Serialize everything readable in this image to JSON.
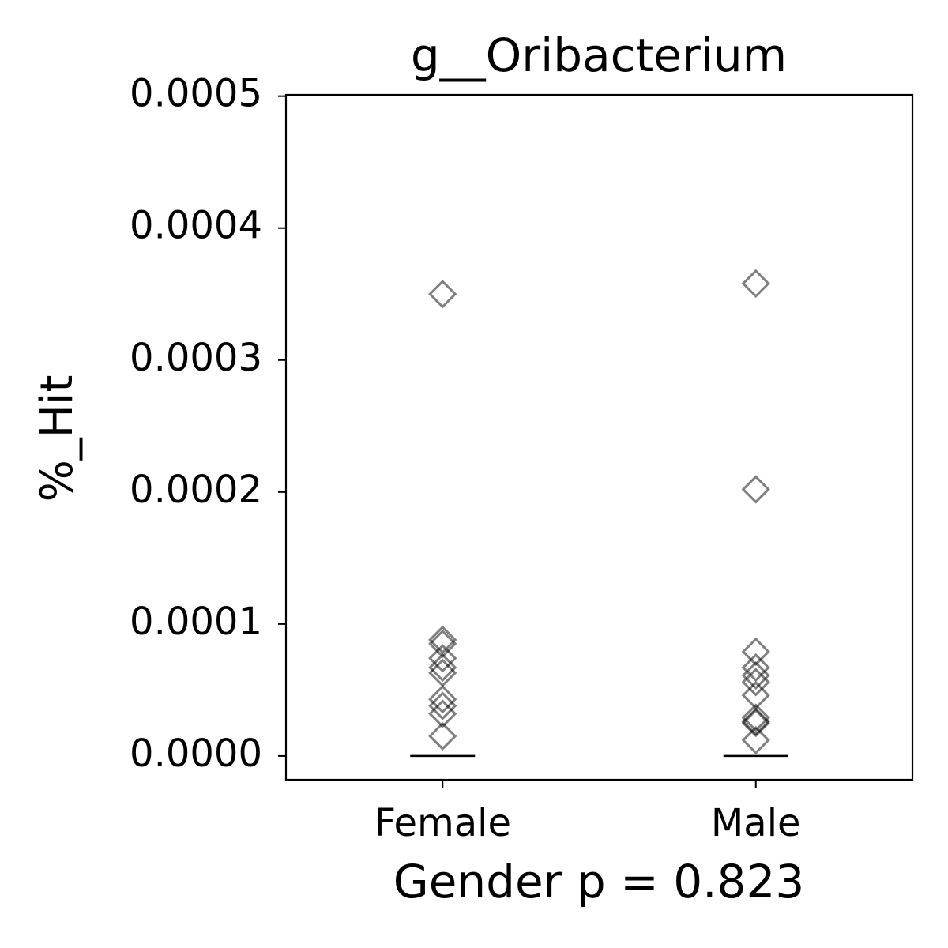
{
  "chart_data": {
    "type": "strip",
    "title": "g__Oribacterium",
    "xlabel": "Gender p = 0.823",
    "ylabel": "%_Hit",
    "categories": [
      "Female",
      "Male"
    ],
    "values": [
      [
        0.00035,
        8.8e-05,
        8.5e-05,
        7.4e-05,
        6.7e-05,
        6.3e-05,
        4.3e-05,
        3.8e-05,
        3.2e-05,
        1.5e-05
      ],
      [
        0.000358,
        0.000202,
        7.9e-05,
        6.7e-05,
        6.1e-05,
        5.6e-05,
        4.6e-05,
        2.9e-05,
        2.6e-05,
        2.5e-05,
        1.2e-05
      ]
    ],
    "center_values": [
      0,
      0
    ],
    "color": "#000000",
    "marker_opacity": 0.5,
    "ylim": [
      -1.8e-05,
      0.000501
    ],
    "yticks": [
      {
        "value": 0,
        "label": "0.0000"
      },
      {
        "value": 0.0001,
        "label": "0.0001"
      },
      {
        "value": 0.0002,
        "label": "0.0002"
      },
      {
        "value": 0.0003,
        "label": "0.0003"
      },
      {
        "value": 0.0004,
        "label": "0.0004"
      },
      {
        "value": 0.0005,
        "label": "0.0005"
      }
    ],
    "grid": false
  }
}
